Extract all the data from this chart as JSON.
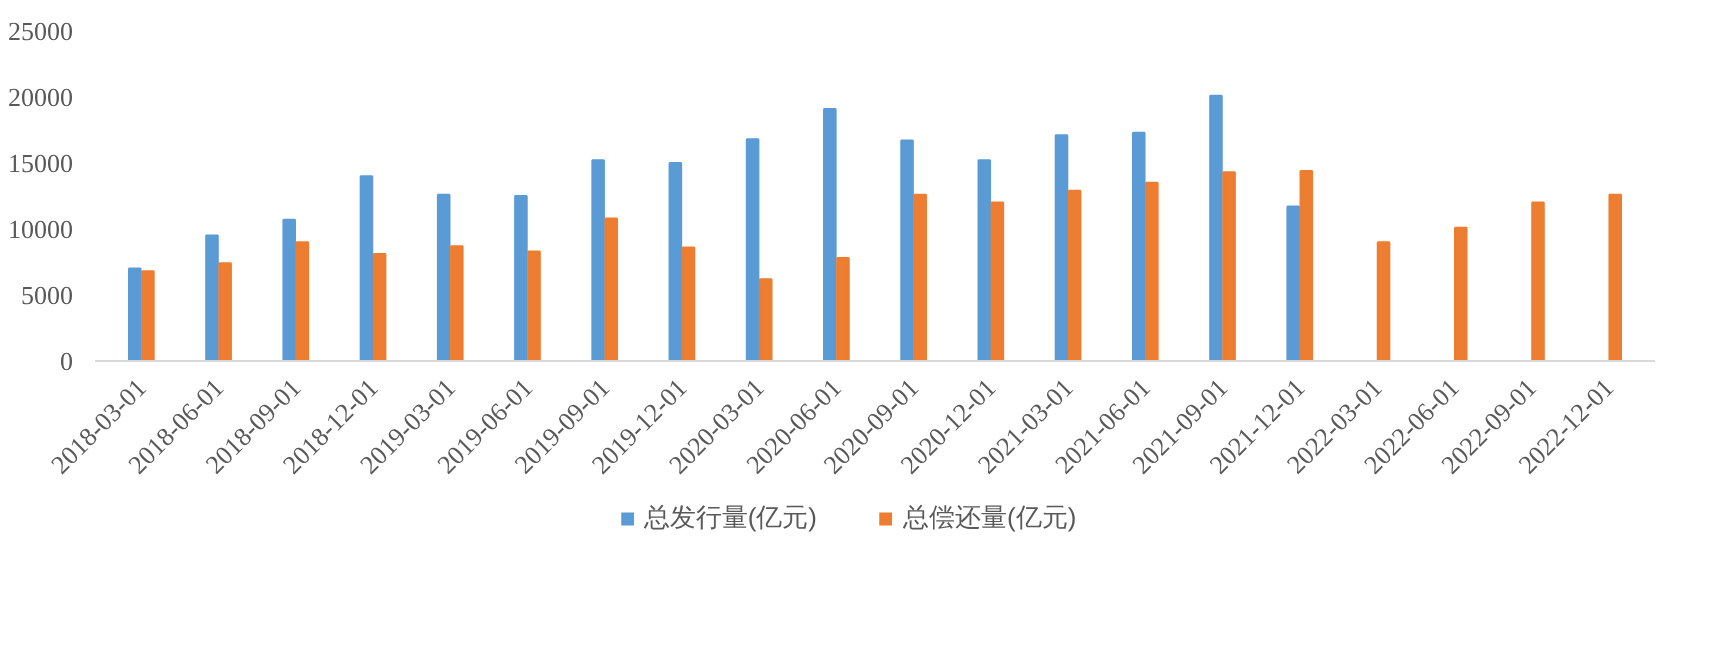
{
  "chart_data": {
    "type": "bar",
    "categories": [
      "2018-03-01",
      "2018-06-01",
      "2018-09-01",
      "2018-12-01",
      "2019-03-01",
      "2019-06-01",
      "2019-09-01",
      "2019-12-01",
      "2020-03-01",
      "2020-06-01",
      "2020-09-01",
      "2020-12-01",
      "2021-03-01",
      "2021-06-01",
      "2021-09-01",
      "2021-12-01",
      "2022-03-01",
      "2022-06-01",
      "2022-09-01",
      "2022-12-01"
    ],
    "series": [
      {
        "name": "总发行量(亿元)",
        "color": "#5b9bd5",
        "values": [
          7000,
          9500,
          10700,
          14000,
          12600,
          12500,
          15200,
          15000,
          16800,
          19100,
          16700,
          15200,
          17100,
          17300,
          20100,
          11700,
          null,
          null,
          null,
          null
        ]
      },
      {
        "name": "总偿还量(亿元)",
        "color": "#ed7d31",
        "values": [
          6800,
          7400,
          9000,
          8100,
          8700,
          8300,
          10800,
          8600,
          6200,
          7800,
          12600,
          12000,
          12900,
          13500,
          14300,
          14400,
          9000,
          10100,
          12000,
          12600
        ]
      }
    ],
    "ylim": [
      0,
      25000
    ],
    "yticks": [
      0,
      5000,
      10000,
      15000,
      20000,
      25000
    ],
    "grid": false,
    "legend": "bottom"
  }
}
